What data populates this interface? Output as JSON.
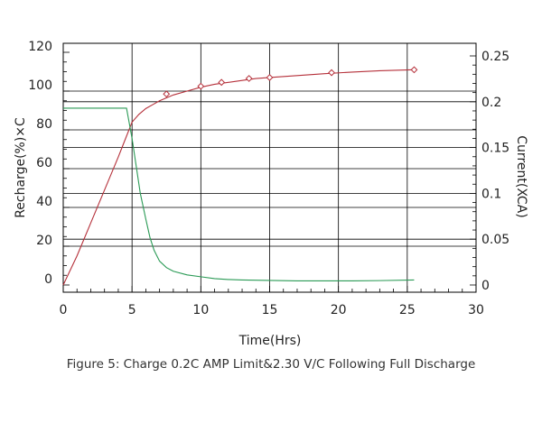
{
  "caption": "Figure 5: Charge 0.2C AMP Limit&2.30 V/C Following Full Discharge",
  "chart_data": {
    "type": "line",
    "title": "",
    "xlabel": "Time(Hrs)",
    "ylabel": "Recharge(%)×C",
    "y2label": "Current(XCA)",
    "xlim": [
      0,
      30
    ],
    "ylim": [
      0,
      120
    ],
    "y2lim": [
      0,
      0.25
    ],
    "x_ticks": [
      "0",
      "5",
      "10",
      "15",
      "20",
      "25",
      "30"
    ],
    "y_ticks": [
      "0",
      "20",
      "40",
      "60",
      "80",
      "100",
      "120"
    ],
    "y2_ticks": [
      "0",
      "0.05",
      "0.1",
      "0.15",
      "0.2",
      "0.25"
    ],
    "grid": true,
    "colors": {
      "recharge": "#b5303a",
      "current": "#2a9a55",
      "grid": "#000000"
    },
    "series": [
      {
        "axis": "left",
        "x": [
          0,
          1,
          2,
          3,
          4,
          4.5,
          5,
          5.5,
          6,
          6.5,
          7,
          7.5,
          8,
          9,
          10,
          11,
          12,
          13,
          14,
          15,
          17,
          19,
          21,
          23,
          25.5
        ],
        "y": [
          0,
          15,
          32,
          49,
          66,
          75,
          84,
          88,
          91,
          93,
          95,
          96.5,
          98,
          100,
          102,
          103.5,
          104.5,
          105.5,
          106.5,
          107,
          108,
          109,
          109.8,
          110.5,
          111
        ]
      },
      {
        "axis": "right",
        "x": [
          0,
          1,
          2,
          3,
          4,
          4.6,
          5,
          5.3,
          5.6,
          6,
          6.3,
          6.6,
          7,
          7.5,
          8,
          9,
          10,
          11,
          12,
          13,
          15,
          17,
          19,
          21,
          23,
          25.5
        ],
        "y": [
          0.193,
          0.193,
          0.193,
          0.193,
          0.193,
          0.193,
          0.16,
          0.13,
          0.1,
          0.072,
          0.052,
          0.038,
          0.026,
          0.019,
          0.015,
          0.011,
          0.009,
          0.007,
          0.006,
          0.0055,
          0.005,
          0.0045,
          0.0045,
          0.0045,
          0.0048,
          0.0055
        ]
      }
    ],
    "markers": {
      "series": 0,
      "x": [
        7.5,
        10,
        11.5,
        13.5,
        15,
        19.5,
        25.5
      ],
      "y": [
        98.5,
        102.5,
        104.5,
        106.5,
        107,
        109.5,
        111
      ]
    }
  }
}
